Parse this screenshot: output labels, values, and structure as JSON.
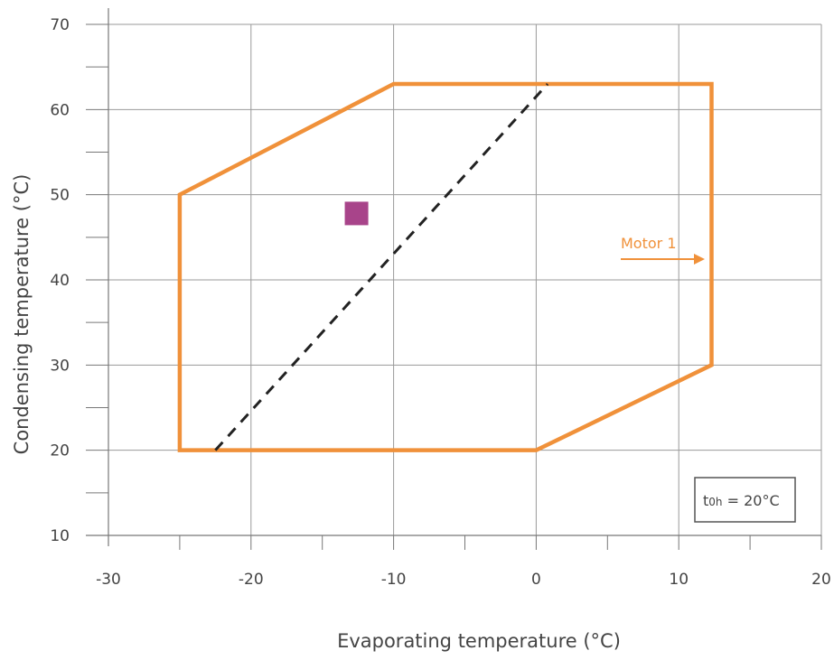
{
  "chart_data": {
    "type": "line",
    "title": "",
    "xlabel": "Evaporating temperature (°C)",
    "ylabel": "Condensing temperature (°C)",
    "xlim": [
      -30,
      20
    ],
    "ylim": [
      10,
      70
    ],
    "x_ticks": [
      -30,
      -20,
      -10,
      0,
      10,
      20
    ],
    "y_ticks": [
      10,
      20,
      30,
      40,
      50,
      60,
      70
    ],
    "x_tick_labels": [
      "-30",
      "-20",
      "-10",
      "0",
      "10",
      "20"
    ],
    "y_tick_labels": [
      "10",
      "20",
      "30",
      "40",
      "50",
      "60",
      "70"
    ],
    "grid": true,
    "series": [
      {
        "name": "Motor 1",
        "style": "solid",
        "color": "#f0913a",
        "closed": true,
        "points": [
          [
            -25,
            20
          ],
          [
            -25,
            50
          ],
          [
            -10,
            63
          ],
          [
            12.3,
            63
          ],
          [
            12.3,
            30
          ],
          [
            0,
            20
          ]
        ]
      },
      {
        "name": "",
        "style": "dashed",
        "color": "#222222",
        "points": [
          [
            -22.5,
            20
          ],
          [
            0.8,
            63
          ]
        ]
      }
    ],
    "markers": [
      {
        "shape": "square",
        "color": "#a8448a",
        "x": -12.6,
        "y": 47.8
      }
    ],
    "annotations": {
      "motor_label": "Motor 1",
      "condition_prefix": "t",
      "condition_sub": "0h",
      "condition_rest": " = 20°C"
    }
  }
}
